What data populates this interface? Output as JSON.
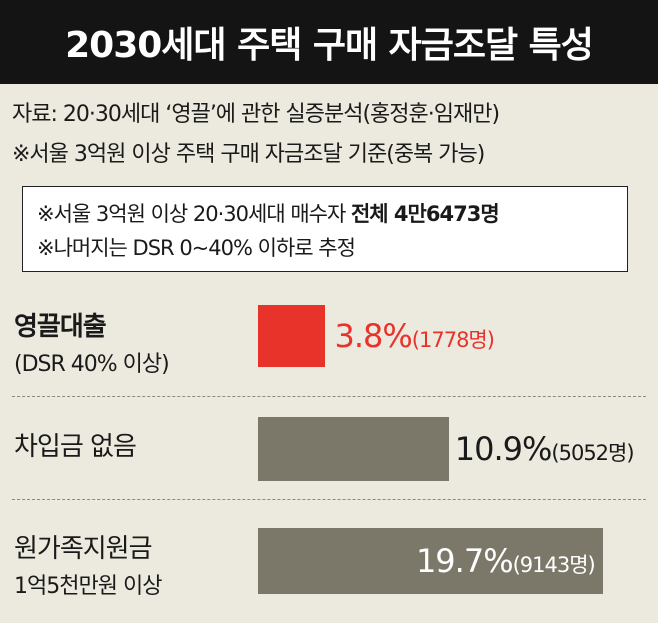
{
  "title": "2030세대 주택 구매 자금조달 특성",
  "source_line1": "자료: 20·30세대 ‘영끌’에 관한 실증분석(홍정훈·임재만)",
  "source_line2": "※서울 3억원 이상 주택 구매 자금조달 기준(중복 가능)",
  "note_line1_prefix": "※서울 3억원 이상 20·30세대 매수자 ",
  "note_line1_bold": "전체 4만6473명",
  "note_line2": "※나머지는 DSR 0~40% 이하로 추정",
  "chart_data": {
    "type": "bar",
    "orientation": "horizontal",
    "categories": [
      "영끌대출",
      "차입금 없음",
      "원가족지원금"
    ],
    "category_sublabels": [
      "(DSR 40% 이상)",
      "",
      "1억5천만원 이상"
    ],
    "values": [
      3.8,
      10.9,
      19.7
    ],
    "value_labels": [
      "3.8%",
      "10.9%",
      "19.7%"
    ],
    "counts": [
      1778,
      5052,
      9143
    ],
    "count_labels": [
      "(1778명)",
      "(5052명)",
      "(9143명)"
    ],
    "unit": "%",
    "colors": [
      "#e8332a",
      "#7b786a",
      "#7b786a"
    ],
    "label_colors": [
      "#e8332a",
      "#1a1a1a",
      "#ffffff"
    ],
    "xlim": [
      0,
      20
    ]
  }
}
